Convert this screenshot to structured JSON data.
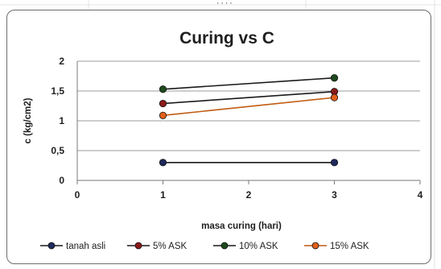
{
  "chart_data": {
    "type": "line",
    "title": "Curing vs C",
    "xlabel": "masa curing (hari)",
    "ylabel": "c (kg/cm2)",
    "xlim": [
      0,
      4
    ],
    "ylim": [
      0,
      2
    ],
    "x_ticks": [
      "0",
      "1",
      "2",
      "3",
      "4"
    ],
    "y_ticks": [
      "0",
      "0,5",
      "1",
      "1,5",
      "2"
    ],
    "grid": true,
    "legend_position": "bottom",
    "series": [
      {
        "name": "tanah asli",
        "x": [
          1,
          3
        ],
        "values": [
          0.3,
          0.3
        ],
        "line_color": "#1a1a1a",
        "marker_color": "#1f2a5c"
      },
      {
        "name": "5% ASK",
        "x": [
          1,
          3
        ],
        "values": [
          1.29,
          1.49
        ],
        "line_color": "#1a1a1a",
        "marker_color": "#8b1a1a"
      },
      {
        "name": "10% ASK",
        "x": [
          1,
          3
        ],
        "values": [
          1.53,
          1.72
        ],
        "line_color": "#1a1a1a",
        "marker_color": "#1e4a1e"
      },
      {
        "name": "15% ASK",
        "x": [
          1,
          3
        ],
        "values": [
          1.09,
          1.39
        ],
        "line_color": "#c05a10",
        "marker_color": "#e0601a"
      }
    ]
  }
}
